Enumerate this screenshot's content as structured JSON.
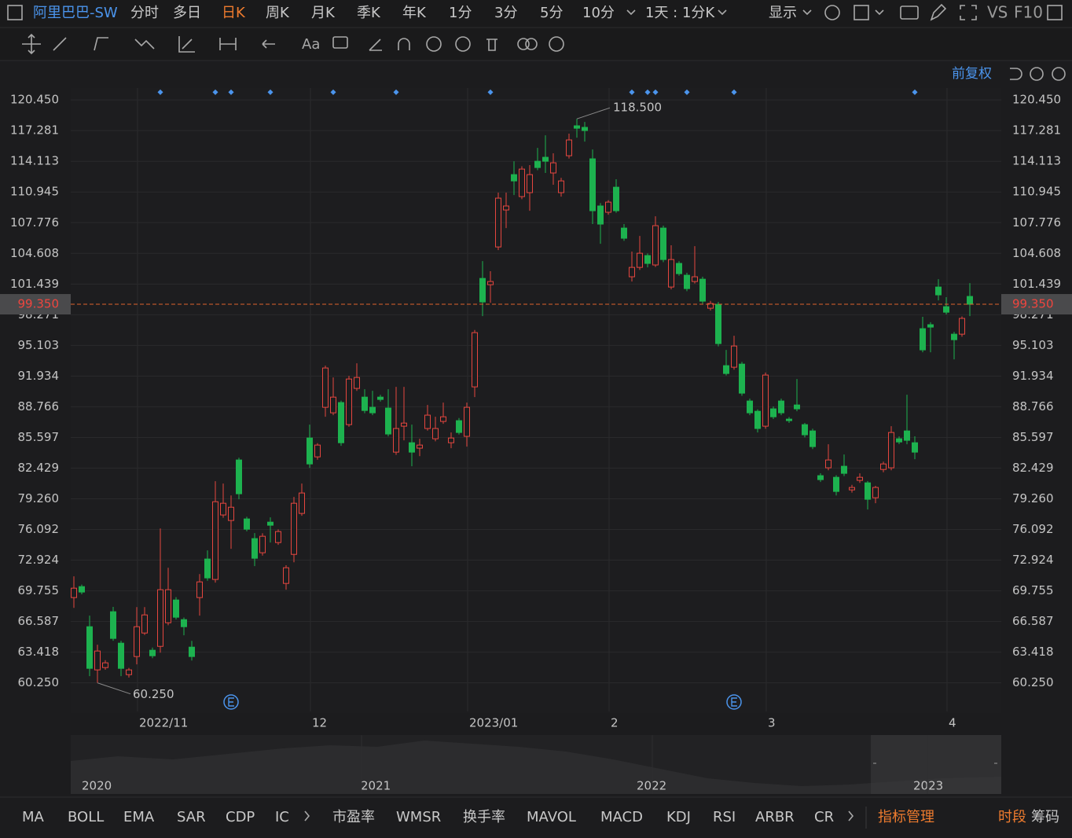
{
  "toolbar": {
    "symbol": "阿里巴巴-SW",
    "periods": [
      "分时",
      "多日",
      "日K",
      "周K",
      "月K",
      "季K",
      "年K",
      "1分",
      "3分",
      "5分",
      "10分"
    ],
    "interval": "1天 : 1分K",
    "display": "显示",
    "vs": "VS",
    "f10": "F10"
  },
  "drawing_tools": {
    "text_tool": "Aa"
  },
  "adjust": "前复权",
  "chart_data": {
    "type": "candlestick",
    "categories": [
      null,
      null,
      null,
      null,
      null,
      null,
      null,
      null,
      "2022/11",
      null,
      null,
      null,
      null,
      null,
      null,
      null,
      null,
      null,
      null,
      null,
      null,
      null,
      null,
      null,
      null,
      null,
      null,
      null,
      null,
      null,
      "12",
      null,
      null,
      null,
      null,
      null,
      null,
      null,
      null,
      null,
      null,
      null,
      null,
      null,
      null,
      null,
      null,
      null,
      null,
      null,
      "2023/01",
      null,
      null,
      null,
      null,
      null,
      null,
      null,
      null,
      null,
      null,
      null,
      null,
      null,
      null,
      null,
      null,
      null,
      "2",
      null,
      null,
      null,
      null,
      null,
      null,
      null,
      null,
      null,
      null,
      null,
      null,
      null,
      null,
      null,
      null,
      null,
      null,
      null,
      "3",
      null,
      null,
      null,
      null,
      null,
      null,
      null,
      null,
      null,
      null,
      null,
      null,
      null,
      null,
      null,
      null,
      null,
      null,
      null,
      null,
      null,
      null,
      "4",
      null,
      null,
      null
    ],
    "open": [
      69.06,
      70.19,
      66.05,
      61.59,
      61.83,
      67.6,
      64.35,
      61.1,
      62.97,
      65.4,
      63.62,
      64.02,
      66.46,
      68.81,
      66.78,
      63.94,
      69.06,
      73.04,
      70.93,
      77.59,
      77.02,
      83.27,
      77.18,
      75.15,
      73.69,
      76.85,
      74.74,
      70.52,
      73.52,
      77.75,
      85.54,
      83.59,
      88.71,
      88.14,
      89.2,
      86.92,
      90.66,
      89.76,
      88.71,
      89.76,
      88.63,
      84.08,
      86.76,
      85.05,
      84.49,
      86.52,
      85.46,
      87.25,
      85.05,
      87.33,
      85.71,
      90.82,
      102.02,
      101.37,
      105.27,
      109.09,
      112.74,
      110.47,
      110.88,
      114.12,
      114.53,
      112.91,
      110.88,
      114.69,
      117.78,
      117.62,
      114.37,
      109.5,
      108.85,
      111.44,
      107.22,
      102.19,
      103.16,
      104.38,
      103.41,
      107.22,
      101.13,
      103.57,
      102.35,
      101.7,
      101.94,
      98.94,
      99.35,
      93.01,
      92.85,
      93.17,
      89.36,
      88.3,
      86.76,
      88.55,
      89.36,
      87.49,
      88.95,
      86.92,
      86.27,
      81.65,
      82.46,
      81.48,
      82.62,
      80.18,
      81.16,
      80.91,
      79.37,
      82.29,
      82.46,
      85.46,
      86.27,
      85.05,
      96.83,
      97.24,
      101.13,
      99.1,
      96.26,
      96.26,
      100.16
    ],
    "high": [
      71.25,
      70.4,
      67.19,
      64.19,
      62.6,
      68.1,
      64.6,
      61.8,
      68.08,
      68.08,
      63.9,
      76.2,
      72.14,
      69.1,
      67.0,
      64.59,
      71.49,
      73.93,
      81.08,
      80.83,
      79.61,
      83.5,
      77.4,
      75.72,
      75.7,
      77.34,
      76.1,
      72.4,
      79.45,
      80.83,
      86.92,
      85.0,
      93.01,
      91.79,
      89.4,
      91.96,
      93.26,
      90.58,
      90.41,
      90.0,
      90.58,
      90.82,
      90.82,
      86.92,
      85.46,
      88.95,
      87.73,
      89.2,
      86.11,
      87.6,
      89.2,
      96.7,
      103.81,
      102.76,
      110.88,
      110.88,
      114.12,
      113.6,
      113.72,
      115.5,
      116.8,
      114.94,
      112.4,
      116.97,
      118.5,
      118.18,
      115.34,
      109.8,
      110.1,
      112.26,
      107.63,
      104.79,
      106.41,
      104.6,
      108.44,
      107.47,
      105.44,
      103.8,
      102.6,
      105.35,
      102.2,
      99.7,
      99.6,
      94.64,
      96.1,
      93.4,
      89.6,
      88.5,
      92.3,
      88.8,
      89.6,
      87.7,
      91.63,
      87.1,
      86.5,
      81.9,
      84.89,
      81.7,
      83.84,
      80.7,
      81.89,
      81.1,
      80.6,
      83.1,
      86.76,
      85.7,
      90.01,
      85.71,
      98.05,
      97.5,
      101.94,
      100.08,
      96.5,
      98.1,
      101.54
    ],
    "low": [
      68.0,
      69.4,
      60.94,
      60.25,
      61.6,
      64.6,
      60.94,
      60.8,
      62.16,
      65.2,
      62.8,
      63.37,
      66.2,
      66.8,
      65.16,
      62.56,
      67.19,
      70.8,
      70.6,
      77.3,
      74.1,
      79.21,
      75.9,
      72.31,
      73.4,
      74.74,
      74.5,
      69.87,
      72.71,
      77.5,
      82.46,
      83.3,
      87.73,
      87.9,
      84.73,
      86.7,
      90.4,
      88.1,
      87.9,
      89.3,
      85.7,
      83.8,
      85.3,
      82.62,
      83.67,
      86.3,
      85.2,
      87.0,
      84.49,
      85.9,
      84.65,
      89.76,
      98.13,
      99.51,
      104.95,
      107.22,
      110.63,
      110.2,
      109.01,
      113.2,
      112.91,
      111.69,
      110.47,
      114.4,
      116.56,
      116.15,
      107.63,
      105.6,
      108.6,
      108.8,
      105.9,
      101.7,
      102.9,
      103.16,
      103.2,
      103.7,
      100.89,
      102.3,
      100.7,
      101.5,
      99.4,
      98.7,
      95.0,
      92.0,
      92.6,
      89.9,
      87.9,
      86.11,
      86.5,
      87.5,
      87.9,
      87.1,
      88.3,
      85.6,
      84.4,
      81.0,
      82.2,
      79.61,
      81.6,
      79.9,
      80.9,
      78.15,
      78.8,
      82.0,
      82.2,
      84.9,
      84.89,
      83.35,
      94.39,
      94.39,
      99.75,
      98.3,
      93.66,
      96.0,
      98.13
    ],
    "close": [
      70.03,
      69.63,
      61.75,
      63.54,
      62.32,
      64.84,
      61.75,
      61.59,
      66.05,
      67.27,
      63.05,
      69.87,
      69.87,
      67.03,
      66.05,
      62.97,
      70.68,
      71.09,
      78.96,
      78.8,
      78.39,
      79.78,
      76.12,
      73.12,
      75.39,
      76.53,
      75.88,
      72.14,
      78.8,
      79.86,
      82.86,
      84.81,
      92.77,
      89.76,
      85.05,
      91.63,
      91.79,
      88.38,
      88.14,
      89.52,
      85.95,
      86.52,
      87.08,
      84.08,
      84.81,
      87.9,
      86.52,
      87.73,
      85.54,
      86.11,
      88.71,
      96.42,
      99.59,
      101.7,
      110.31,
      109.5,
      112.09,
      113.31,
      112.74,
      113.47,
      114.12,
      113.96,
      112.09,
      116.32,
      117.53,
      117.29,
      109.01,
      107.63,
      109.9,
      109.01,
      106.17,
      103.16,
      104.62,
      103.57,
      107.47,
      103.97,
      103.97,
      102.51,
      100.97,
      102.19,
      99.67,
      99.43,
      95.29,
      92.2,
      95.04,
      90.17,
      88.14,
      86.52,
      92.04,
      87.73,
      88.14,
      87.33,
      88.55,
      85.87,
      84.65,
      81.24,
      83.27,
      80.02,
      81.89,
      80.43,
      81.48,
      79.21,
      80.43,
      82.86,
      86.11,
      85.13,
      85.3,
      84.08,
      94.64,
      96.99,
      100.32,
      98.53,
      95.69,
      97.89,
      99.35
    ],
    "up_color": "#e5463f",
    "down_color": "#1db24f",
    "ylim": [
      57.3,
      121.68
    ],
    "yticks": [
      {
        "value": 120.45,
        "label": "120.450"
      },
      117.281,
      114.113,
      110.945,
      107.776,
      104.608,
      101.439,
      98.271,
      95.103,
      91.934,
      88.766,
      85.597,
      82.429,
      {
        "value": 79.26,
        "label": "79.260"
      },
      76.092,
      72.924,
      69.755,
      66.587,
      63.418,
      {
        "value": 60.25,
        "label": "60.250"
      }
    ],
    "grid": true,
    "high_label": {
      "value": 118.5,
      "label": "118.500"
    },
    "low_label": {
      "value": 60.25,
      "label": "60.250"
    },
    "last_price": {
      "value": 99.35,
      "label": "99.350"
    }
  },
  "navigator": {
    "years": [
      "2020",
      "2021",
      "2022",
      "2023"
    ]
  },
  "indicators": [
    "MA",
    "BOLL",
    "EMA",
    "SAR",
    "CDP",
    "IC",
    "市盈率",
    "WMSR",
    "换手率",
    "MAVOL",
    "MACD",
    "KDJ",
    "RSI",
    "ARBR",
    "CR"
  ],
  "indicator_manage": "指标管理",
  "session": "时段",
  "chips": "筹码"
}
